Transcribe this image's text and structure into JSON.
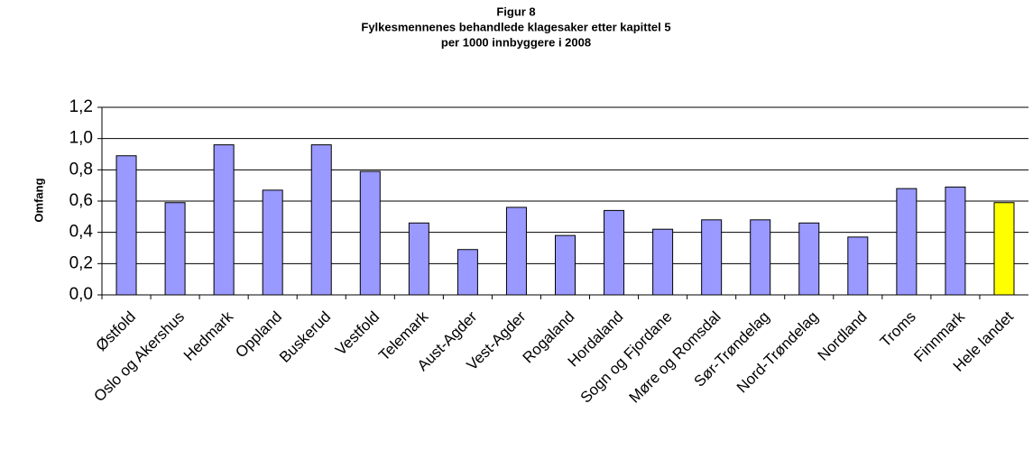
{
  "chart_data": {
    "type": "bar",
    "title": "Figur 8",
    "subtitle": [
      "Fylkesmennenes behandlede klagesaker etter kapittel 5",
      "per 1000 innbyggere i 2008"
    ],
    "y_label": "Omfang",
    "categories": [
      "Østfold",
      "Oslo og Akershus",
      "Hedmark",
      "Oppland",
      "Buskerud",
      "Vestfold",
      "Telemark",
      "Aust-Agder",
      "Vest-Agder",
      "Rogaland",
      "Hordaland",
      "Sogn og Fjordane",
      "Møre og Romsdal",
      "Sør-Trøndelag",
      "Nord-Trøndelag",
      "Nordland",
      "Troms",
      "Finnmark",
      "Hele landet"
    ],
    "values": [
      0.89,
      0.59,
      0.96,
      0.67,
      0.96,
      0.79,
      0.46,
      0.29,
      0.56,
      0.38,
      0.54,
      0.42,
      0.48,
      0.48,
      0.46,
      0.37,
      0.68,
      0.69,
      0.59
    ],
    "colors": [
      "#9999ff",
      "#9999ff",
      "#9999ff",
      "#9999ff",
      "#9999ff",
      "#9999ff",
      "#9999ff",
      "#9999ff",
      "#9999ff",
      "#9999ff",
      "#9999ff",
      "#9999ff",
      "#9999ff",
      "#9999ff",
      "#9999ff",
      "#9999ff",
      "#9999ff",
      "#9999ff",
      "#ffff00"
    ],
    "ylim": [
      0,
      1.2
    ],
    "yticks": [
      {
        "value": 0,
        "label": "0,0"
      },
      {
        "value": 0.2,
        "label": "0,2"
      },
      {
        "value": 0.4,
        "label": "0,4"
      },
      {
        "value": 0.6,
        "label": "0,6"
      },
      {
        "value": 0.8,
        "label": "0,8"
      },
      {
        "value": 1.0,
        "label": "1,0"
      },
      {
        "value": 1.2,
        "label": "1,2"
      }
    ],
    "grid": true
  }
}
